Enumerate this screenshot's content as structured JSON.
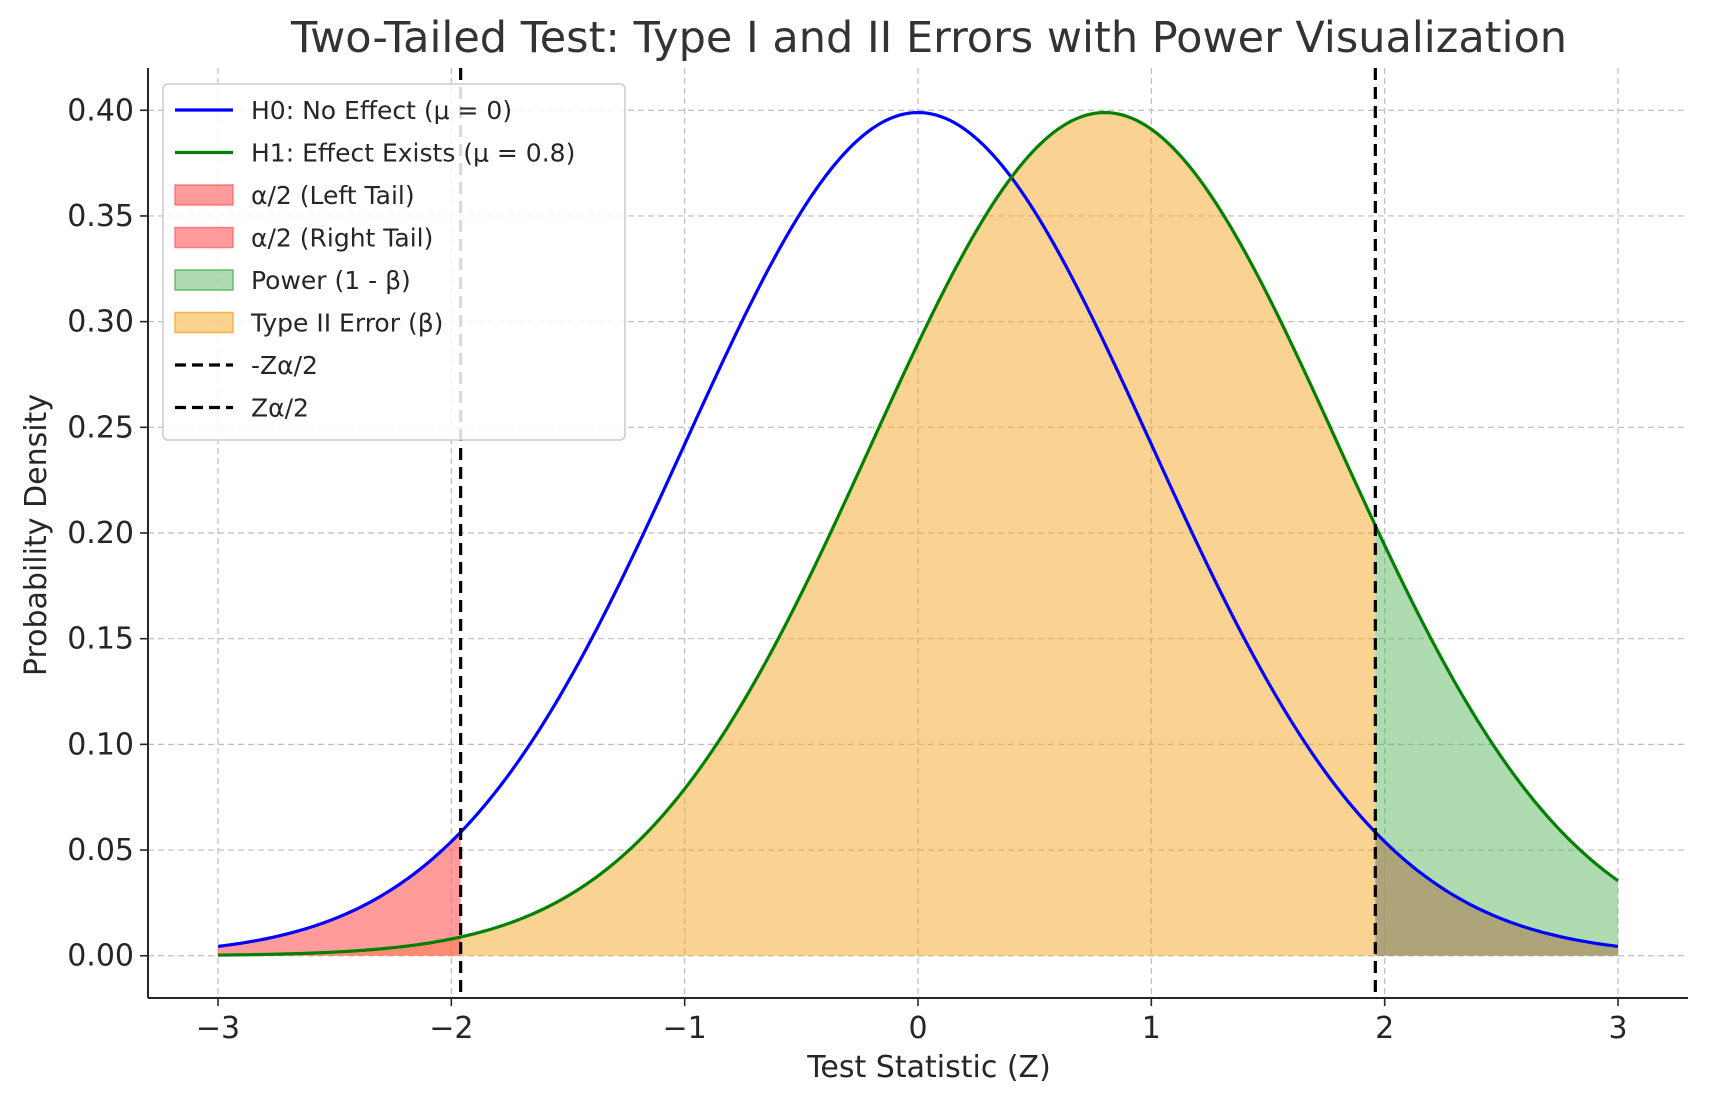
{
  "chart_data": {
    "type": "line",
    "title": "Two-Tailed Test: Type I and II Errors with Power Visualization",
    "xlabel": "Test Statistic (Z)",
    "ylabel": "Probability Density",
    "xlim": [
      -3.3,
      3.3
    ],
    "ylim": [
      -0.02,
      0.42
    ],
    "x_range": [
      -3,
      3
    ],
    "xticks": [
      -3,
      -2,
      -1,
      0,
      1,
      2,
      3
    ],
    "xtick_labels": [
      "−3",
      "−2",
      "−1",
      "0",
      "1",
      "2",
      "3"
    ],
    "yticks": [
      0.0,
      0.05,
      0.1,
      0.15,
      0.2,
      0.25,
      0.3,
      0.35,
      0.4
    ],
    "ytick_labels": [
      "0.00",
      "0.05",
      "0.10",
      "0.15",
      "0.20",
      "0.25",
      "0.30",
      "0.35",
      "0.40"
    ],
    "grid": true,
    "legend_position": "top-left",
    "critical_values": {
      "lower": -1.96,
      "upper": 1.96
    },
    "series": [
      {
        "name": "H0: No Effect (μ = 0)",
        "kind": "normal_pdf",
        "mean": 0,
        "sd": 1,
        "color": "#0000ff"
      },
      {
        "name": "H1: Effect Exists (μ = 0.8)",
        "kind": "normal_pdf",
        "mean": 0.8,
        "sd": 1,
        "color": "#008000"
      }
    ],
    "fills": [
      {
        "name": "α/2 (Left Tail)",
        "under": "H0",
        "from": -3,
        "to": -1.96,
        "color": "#ff6666",
        "opacity": 0.65
      },
      {
        "name": "α/2 (Right Tail)",
        "under": "H0",
        "from": 1.96,
        "to": 3,
        "color": "#ff6666",
        "opacity": 0.65
      },
      {
        "name": "Power (1 - β)",
        "under": "H1",
        "from": 1.96,
        "to": 3,
        "color": "#4caf50",
        "opacity": 0.45
      },
      {
        "name": "Type II Error (β)",
        "under": "H1",
        "from": -3,
        "to": 1.96,
        "color": "#f5a623",
        "opacity": 0.5
      }
    ],
    "vlines": [
      {
        "name": "-Zα/2",
        "x": -1.96,
        "color": "#000000",
        "style": "dashed"
      },
      {
        "name": "Zα/2",
        "x": 1.96,
        "color": "#000000",
        "style": "dashed"
      }
    ],
    "legend": [
      {
        "label": "H0: No Effect (μ = 0)",
        "kind": "line",
        "color": "#0000ff"
      },
      {
        "label": "H1: Effect Exists (μ = 0.8)",
        "kind": "line",
        "color": "#008000"
      },
      {
        "label": "α/2 (Left Tail)",
        "kind": "patch",
        "color": "#ff6666",
        "opacity": 0.65
      },
      {
        "label": "α/2 (Right Tail)",
        "kind": "patch",
        "color": "#ff6666",
        "opacity": 0.65
      },
      {
        "label": "Power (1 - β)",
        "kind": "patch",
        "color": "#4caf50",
        "opacity": 0.45
      },
      {
        "label": "Type II Error (β)",
        "kind": "patch",
        "color": "#f5a623",
        "opacity": 0.5
      },
      {
        "label": "-Zα/2",
        "kind": "dashed",
        "color": "#000000"
      },
      {
        "label": "Zα/2",
        "kind": "dashed",
        "color": "#000000"
      }
    ]
  }
}
